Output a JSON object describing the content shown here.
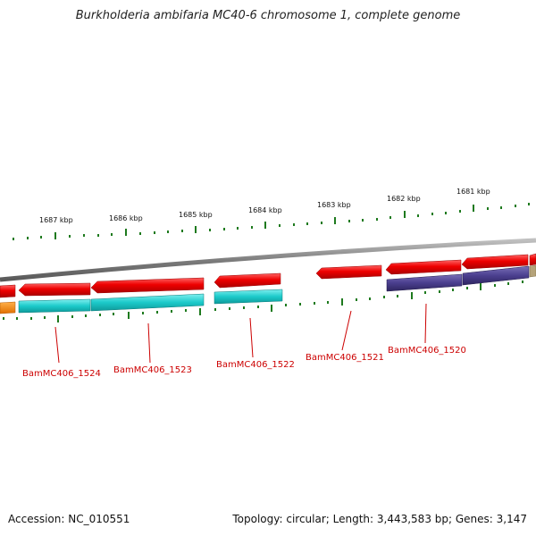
{
  "title": "Burkholderia ambifaria MC40-6 chromosome 1, complete genome",
  "footer": {
    "accession": "Accession: NC_010551",
    "topology": "Topology: circular; Length: 3,443,583 bp; Genes: 3,147"
  },
  "ruler": {
    "ticks": [
      "1687 kbp",
      "1686 kbp",
      "1685 kbp",
      "1684 kbp",
      "1683 kbp",
      "1682 kbp",
      "1681 kbp"
    ]
  },
  "genes": [
    {
      "label": "BamMC406_1524"
    },
    {
      "label": "BamMC406_1523"
    },
    {
      "label": "BamMC406_1522"
    },
    {
      "label": "BamMC406_1521"
    },
    {
      "label": "BamMC406_1520"
    }
  ],
  "colors": {
    "cds": "#ee1111",
    "cyan": "#22cccc",
    "purple": "#4b3f8f",
    "orange": "#ff8c00",
    "backbone": "#8a8a8a",
    "tick": "#1e7a1e",
    "label": "#cc0000"
  }
}
